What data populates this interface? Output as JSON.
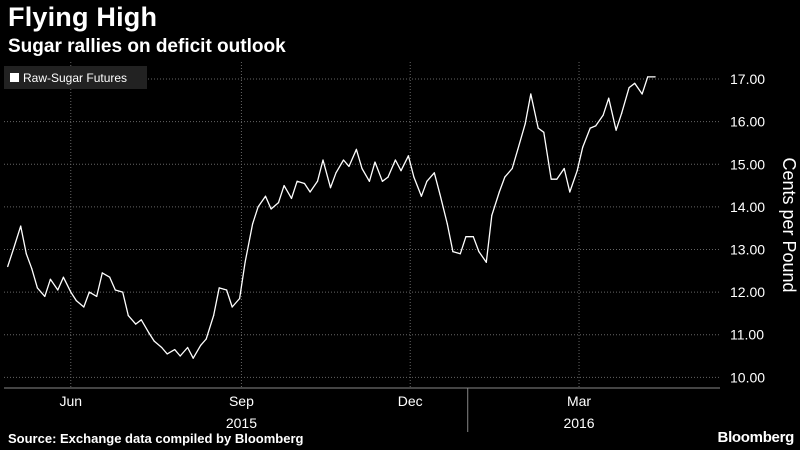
{
  "title": "Flying High",
  "subtitle": "Sugar rallies on deficit outlook",
  "source": "Source: Exchange data compiled by Bloomberg",
  "brand": "Bloomberg",
  "chart_data": {
    "type": "line",
    "title": "Flying High",
    "subtitle": "Sugar rallies on deficit outlook",
    "ylabel": "Cents per Pound",
    "ylim": [
      9.8,
      17.5
    ],
    "yticks": [
      10,
      11,
      12,
      13,
      14,
      15,
      16,
      17
    ],
    "ytick_labels": [
      "10.00",
      "11.00",
      "12.00",
      "13.00",
      "14.00",
      "15.00",
      "16.00",
      "17.00"
    ],
    "month_ticks": [
      {
        "label": "Jun",
        "date": "2015-06-01"
      },
      {
        "label": "Sep",
        "date": "2015-09-01"
      },
      {
        "label": "Dec",
        "date": "2015-12-01"
      },
      {
        "label": "Mar",
        "date": "2016-03-01"
      }
    ],
    "year_labels": [
      {
        "label": "2015",
        "date": "2015-09-01"
      },
      {
        "label": "2016",
        "date": "2016-03-01"
      }
    ],
    "year_divider_date": "2016-01-01",
    "grid": true,
    "legend_position": "top-left",
    "colors": {
      "background": "#000000",
      "line": "#ffffff",
      "grid": "#666666",
      "legend_bg": "#222222"
    },
    "series": [
      {
        "name": "Raw-Sugar Futures",
        "x": [
          "2015-04-28",
          "2015-05-01",
          "2015-05-05",
          "2015-05-08",
          "2015-05-11",
          "2015-05-14",
          "2015-05-18",
          "2015-05-21",
          "2015-05-25",
          "2015-05-28",
          "2015-06-01",
          "2015-06-04",
          "2015-06-08",
          "2015-06-11",
          "2015-06-15",
          "2015-06-18",
          "2015-06-22",
          "2015-06-25",
          "2015-06-29",
          "2015-07-02",
          "2015-07-06",
          "2015-07-09",
          "2015-07-13",
          "2015-07-16",
          "2015-07-20",
          "2015-07-23",
          "2015-07-27",
          "2015-07-30",
          "2015-08-03",
          "2015-08-06",
          "2015-08-10",
          "2015-08-13",
          "2015-08-17",
          "2015-08-20",
          "2015-08-24",
          "2015-08-27",
          "2015-08-31",
          "2015-09-03",
          "2015-09-07",
          "2015-09-10",
          "2015-09-14",
          "2015-09-17",
          "2015-09-21",
          "2015-09-24",
          "2015-09-28",
          "2015-10-01",
          "2015-10-05",
          "2015-10-08",
          "2015-10-12",
          "2015-10-15",
          "2015-10-19",
          "2015-10-22",
          "2015-10-26",
          "2015-10-29",
          "2015-11-02",
          "2015-11-05",
          "2015-11-09",
          "2015-11-12",
          "2015-11-16",
          "2015-11-19",
          "2015-11-23",
          "2015-11-26",
          "2015-11-30",
          "2015-12-03",
          "2015-12-07",
          "2015-12-10",
          "2015-12-14",
          "2015-12-17",
          "2015-12-21",
          "2015-12-24",
          "2015-12-28",
          "2015-12-31",
          "2016-01-04",
          "2016-01-07",
          "2016-01-11",
          "2016-01-14",
          "2016-01-18",
          "2016-01-21",
          "2016-01-25",
          "2016-01-28",
          "2016-02-01",
          "2016-02-04",
          "2016-02-08",
          "2016-02-11",
          "2016-02-15",
          "2016-02-18",
          "2016-02-22",
          "2016-02-25",
          "2016-02-29",
          "2016-03-03",
          "2016-03-07",
          "2016-03-10",
          "2016-03-14",
          "2016-03-17",
          "2016-03-21",
          "2016-03-24",
          "2016-03-28",
          "2016-03-31",
          "2016-04-04",
          "2016-04-07",
          "2016-04-11",
          "2016-04-14",
          "2016-04-18",
          "2016-04-21",
          "2016-04-25",
          "2016-04-28",
          "2016-05-02",
          "2016-05-05"
        ],
        "y": [
          12.6,
          13.0,
          13.55,
          12.9,
          12.55,
          12.1,
          11.9,
          12.3,
          12.05,
          12.35,
          12.0,
          11.8,
          11.65,
          12.0,
          11.9,
          12.45,
          12.35,
          12.05,
          12.0,
          11.45,
          11.25,
          11.35,
          11.05,
          10.85,
          10.7,
          10.55,
          10.65,
          10.5,
          10.7,
          10.45,
          10.75,
          10.9,
          11.45,
          12.1,
          12.05,
          11.65,
          11.85,
          12.7,
          13.6,
          14.0,
          14.25,
          13.95,
          14.1,
          14.5,
          14.2,
          14.6,
          14.55,
          14.35,
          14.6,
          15.1,
          14.45,
          14.8,
          15.1,
          14.95,
          15.35,
          14.9,
          14.6,
          15.05,
          14.6,
          14.7,
          15.1,
          14.85,
          15.2,
          14.7,
          14.25,
          14.6,
          14.8,
          14.3,
          13.6,
          12.95,
          12.9,
          13.3,
          13.3,
          12.95,
          12.7,
          13.8,
          14.35,
          14.7,
          14.9,
          15.35,
          15.95,
          16.65,
          15.85,
          15.75,
          14.65,
          14.65,
          14.9,
          14.35,
          14.85,
          15.4,
          15.85,
          15.9,
          16.15,
          16.55,
          15.8,
          16.2,
          16.8,
          16.9,
          16.65,
          17.05,
          17.05,
          17.05,
          17.05,
          17.05,
          17.05,
          17.05,
          17.05,
          17.05
        ]
      }
    ]
  }
}
